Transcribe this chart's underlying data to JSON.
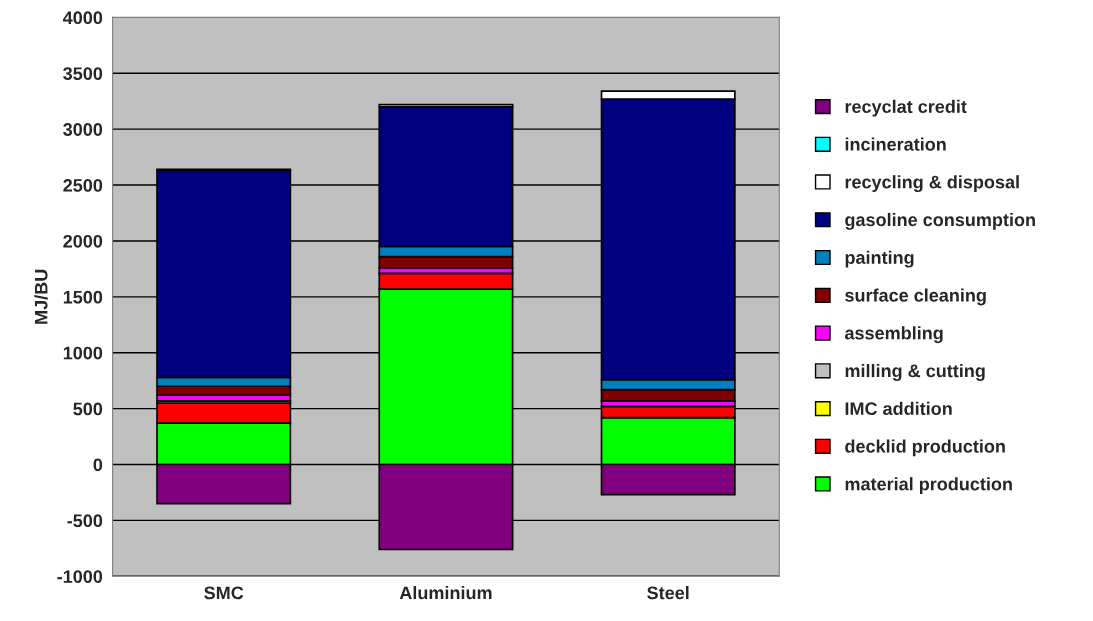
{
  "chart_data": {
    "type": "bar",
    "stacked": true,
    "ylabel": "MJ/BU",
    "categories": [
      "SMC",
      "Aluminium",
      "Steel"
    ],
    "series": [
      {
        "name": "material production",
        "color": "#00ff00",
        "values": [
          370,
          1570,
          420
        ]
      },
      {
        "name": "decklid production",
        "color": "#ff0000",
        "values": [
          180,
          140,
          100
        ]
      },
      {
        "name": "IMC addition",
        "color": "#ffff00",
        "values": [
          null,
          null,
          null
        ]
      },
      {
        "name": "milling & cutting",
        "color": "#c0c0c0",
        "values": [
          20,
          null,
          null
        ]
      },
      {
        "name": "assembling",
        "color": "#ff00ff",
        "values": [
          50,
          50,
          50
        ]
      },
      {
        "name": "surface cleaning",
        "color": "#800000",
        "values": [
          80,
          100,
          100
        ]
      },
      {
        "name": "painting",
        "color": "#0080c0",
        "values": [
          80,
          90,
          90
        ]
      },
      {
        "name": "gasoline consumption",
        "color": "#000080",
        "values": [
          1850,
          1250,
          2510
        ]
      },
      {
        "name": "recycling & disposal",
        "color": "#ffffff",
        "values": [
          10,
          20,
          70
        ]
      },
      {
        "name": "incineration",
        "color": "#00ffff",
        "values": [
          null,
          null,
          null
        ]
      },
      {
        "name": "recyclat credit",
        "color": "#800080",
        "values": [
          -350,
          -760,
          -270
        ]
      }
    ],
    "ylim": [
      -1000,
      4000
    ],
    "yticks": [
      -1000,
      -500,
      0,
      500,
      1000,
      1500,
      2000,
      2500,
      3000,
      3500,
      4000
    ],
    "grid": "y",
    "legend": "right"
  }
}
